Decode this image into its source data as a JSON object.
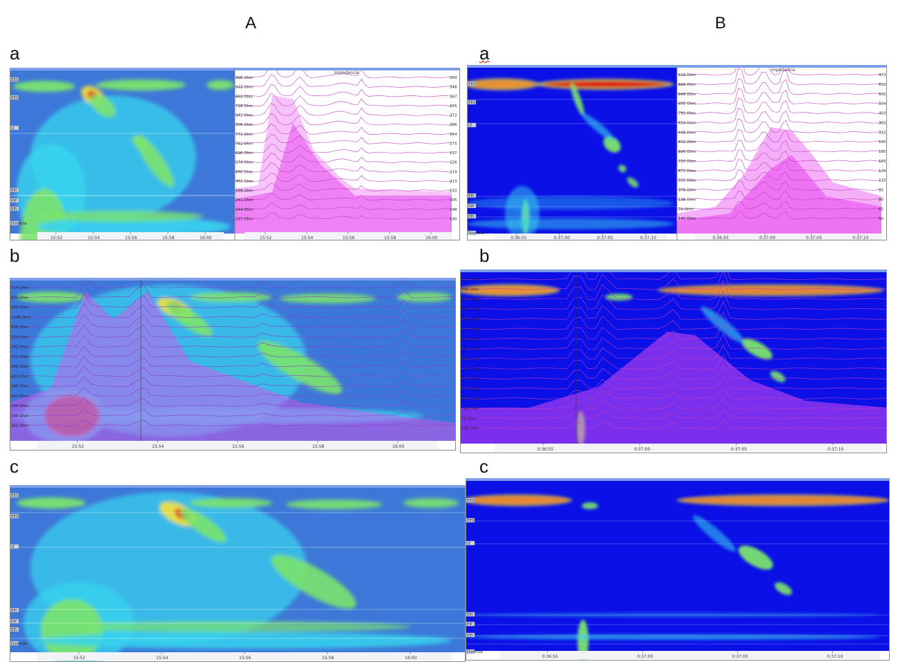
{
  "columns": {
    "a": "A",
    "b": "B"
  },
  "rows": {
    "a": "a",
    "b": "b",
    "c": "c"
  },
  "impedance_title": "Impedancia",
  "colors": {
    "background_blue_A": "#3d78d8",
    "background_blue_B": "#0a10e6",
    "cyan": "#37d4ee",
    "green": "#7be36d",
    "yellow": "#f4e23a",
    "red": "#e21a14",
    "magenta": "#e84ef0"
  },
  "axisA": [
    "15:52",
    "15:54",
    "15:56",
    "15:58",
    "16:00"
  ],
  "axisB": [
    "0:36:55",
    "0:37:00",
    "0:37:05",
    "0:37:10"
  ],
  "sideA": [
    "EES",
    "EES",
    "IZ",
    "EEI",
    "PIP",
    "EEI",
    "Districte"
  ],
  "sideB": [
    "EES",
    "EES",
    "IZ",
    "EEI",
    "PIP",
    "EEI",
    "Districte"
  ],
  "ohmsAa": [
    "996 Ohm",
    "933 Ohm",
    "803 Ohm",
    "728 Ohm",
    "942 Ohm",
    "908 Ohm",
    "771 Ohm",
    "762 Ohm",
    "696 Ohm",
    "574 Ohm",
    "660 Ohm",
    "452 Ohm",
    "269 Ohm",
    "241 Ohm",
    "244 Ohm",
    "237 Ohm"
  ],
  "ohmsBa": [
    "519 Ohm",
    "888 Ohm",
    "848 Ohm",
    "895 Ohm",
    "791 Ohm",
    "614 Ohm",
    "648 Ohm",
    "842 Ohm",
    "806 Ohm",
    "720 Ohm",
    "671 Ohm",
    "515 Ohm",
    "378 Ohm",
    "198 Ohm",
    "79 Ohm",
    "140 Ohm"
  ],
  "ohmsAb": [
    "714 Ohm",
    "633 Ohm",
    "563 Ohm",
    "1236 Ohm",
    "838 Ohm",
    "554 Ohm",
    "292 Ohm",
    "372 Ohm",
    "305 Ohm",
    "401 Ohm",
    "285 Ohm",
    "247 Ohm",
    "236 Ohm",
    "248 Ohm",
    "252 Ohm"
  ],
  "ohmsBb": [
    "519 Ohm",
    "888 Ohm",
    "848 Ohm",
    "895 Ohm",
    "791 Ohm",
    "614 Ohm",
    "648 Ohm",
    "842 Ohm",
    "806 Ohm",
    "720 Ohm",
    "671 Ohm",
    "515 Ohm",
    "378 Ohm",
    "198 Ohm",
    "79 Ohm",
    "140 Ohm"
  ],
  "rightNumsA": [
    "369",
    "348",
    "367",
    "355",
    "372",
    "286",
    "264",
    "275",
    "237",
    "226",
    "219",
    "213",
    "210",
    "205",
    "198",
    "190"
  ],
  "rightNumsB": [
    "473",
    "659",
    "605",
    "504",
    "403",
    "363",
    "315",
    "195",
    "185",
    "165",
    "139",
    "115",
    "92",
    "80",
    "65",
    "50"
  ]
}
